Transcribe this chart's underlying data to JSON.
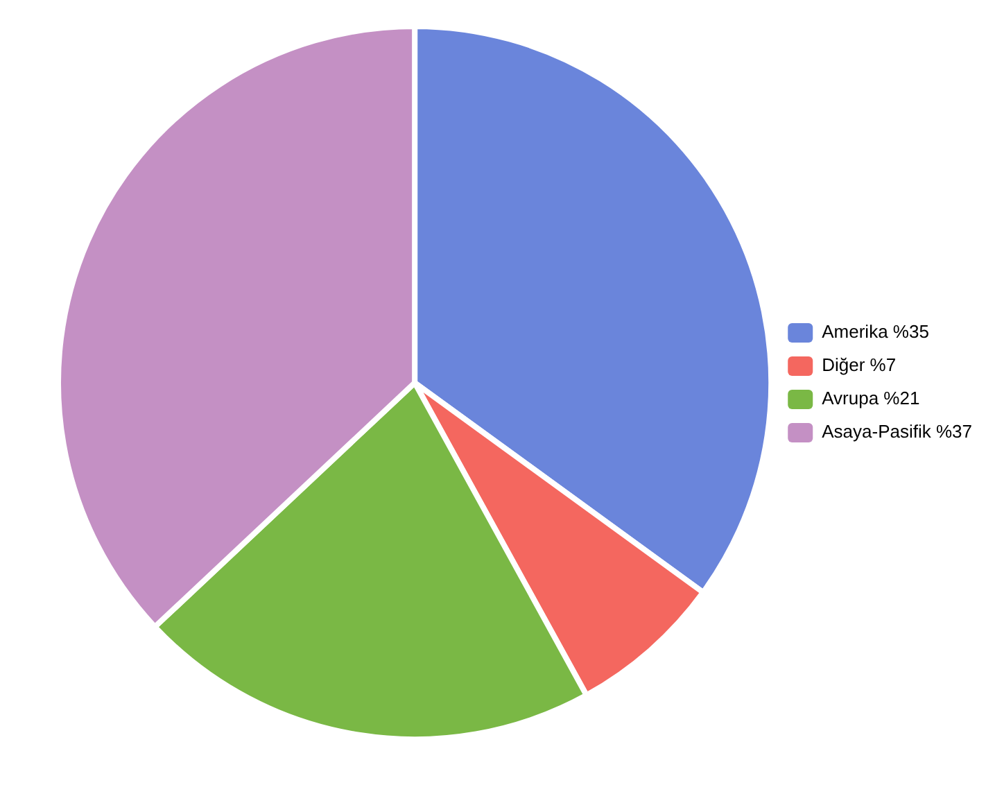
{
  "chart_data": {
    "type": "pie",
    "categories": [
      "Amerika %35",
      "Diğer %7",
      "Avrupa %21",
      "Asaya-Pasifik %37"
    ],
    "values": [
      35,
      7,
      21,
      37
    ],
    "colors": [
      "#6a85db",
      "#f4675f",
      "#7ab845",
      "#c490c4"
    ],
    "legend": "right"
  }
}
